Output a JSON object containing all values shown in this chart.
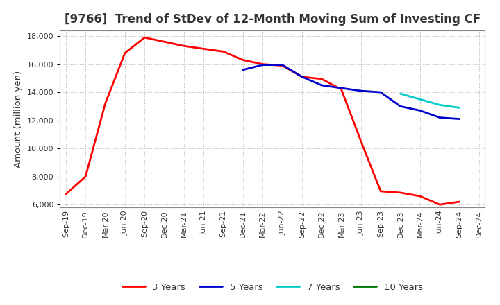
{
  "title": "[9766]  Trend of StDev of 12-Month Moving Sum of Investing CF",
  "ylabel": "Amount (million yen)",
  "ylim": [
    5800,
    18400
  ],
  "yticks": [
    6000,
    8000,
    10000,
    12000,
    14000,
    16000,
    18000
  ],
  "background_color": "#ffffff",
  "grid_color": "#bbbbbb",
  "series": {
    "3 Years": {
      "color": "#ff0000",
      "x": [
        "Sep-19",
        "Dec-19",
        "Mar-20",
        "Jun-20",
        "Sep-20",
        "Dec-20",
        "Mar-21",
        "Jun-21",
        "Sep-21",
        "Dec-21",
        "Mar-22",
        "Jun-22",
        "Sep-22",
        "Dec-22",
        "Mar-23",
        "Jun-23",
        "Sep-23",
        "Dec-23",
        "Mar-24",
        "Jun-24",
        "Sep-24"
      ],
      "y": [
        6750,
        8000,
        13200,
        16800,
        17900,
        17600,
        17300,
        17100,
        16900,
        16300,
        16000,
        15900,
        15100,
        14950,
        14200,
        10500,
        6950,
        6850,
        6600,
        6000,
        6200
      ]
    },
    "5 Years": {
      "color": "#0000cc",
      "x": [
        "Dec-21",
        "Mar-22",
        "Jun-22",
        "Sep-22",
        "Dec-22",
        "Mar-23",
        "Jun-23",
        "Sep-23",
        "Dec-23",
        "Mar-24",
        "Jun-24",
        "Sep-24"
      ],
      "y": [
        15600,
        15950,
        15950,
        15100,
        14500,
        14300,
        14100,
        14000,
        13000,
        12700,
        12200,
        12100
      ]
    },
    "7 Years": {
      "color": "#00cccc",
      "x": [
        "Dec-23",
        "Mar-24",
        "Jun-24",
        "Sep-24"
      ],
      "y": [
        13900,
        13500,
        13100,
        12900
      ]
    },
    "10 Years": {
      "color": "#007700",
      "x": [
        "Sep-24"
      ],
      "y": [
        12100
      ]
    }
  },
  "x_labels": [
    "Sep-19",
    "Dec-19",
    "Mar-20",
    "Jun-20",
    "Sep-20",
    "Dec-20",
    "Mar-21",
    "Jun-21",
    "Sep-21",
    "Dec-21",
    "Mar-22",
    "Jun-22",
    "Sep-22",
    "Dec-22",
    "Mar-23",
    "Jun-23",
    "Sep-23",
    "Dec-23",
    "Mar-24",
    "Jun-24",
    "Sep-24",
    "Dec-24"
  ],
  "title_fontsize": 12,
  "title_color": "#333333",
  "label_fontsize": 9.5,
  "tick_fontsize": 8,
  "linewidth": 2.0,
  "legend_fontsize": 9.5
}
